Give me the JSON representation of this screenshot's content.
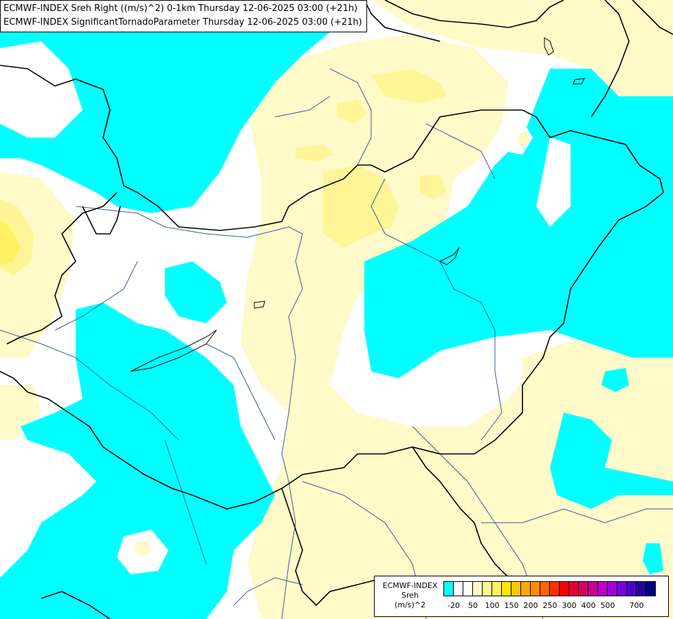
{
  "titles": {
    "line1": "ECMWF-INDEX Sreh Right ((m/s)^2) 0-1km Thursday 12-06-2025 03:00 (+21h)",
    "line2": "ECMWF-INDEX SignificantTornadoParameter Thursday 12-06-2025 03:00 (+21h)"
  },
  "legend": {
    "line1": "ECMWF-INDEX",
    "line2": "Sreh",
    "line3": "(m/s)^2",
    "colors": [
      "#00ffff",
      "#ffffff",
      "#fffff0",
      "#fffac8",
      "#fff596",
      "#fff064",
      "#ffe600",
      "#ffc800",
      "#ffaa00",
      "#ff8c00",
      "#ff6400",
      "#ff3200",
      "#ff0000",
      "#e60032",
      "#d20064",
      "#c80096",
      "#be00c8",
      "#a000dc",
      "#7800dc",
      "#5000c8",
      "#2800a0",
      "#000080"
    ],
    "ticks": [
      "-20",
      "50",
      "100",
      "150",
      "200",
      "250",
      "300",
      "400",
      "500",
      "700"
    ]
  },
  "palette": {
    "cyan": "#00ffff",
    "pale_yellow": "#fffac8",
    "light_yellow": "#fff596",
    "yellow": "#fff064",
    "border": "#000000",
    "river": "#3a5a9a"
  }
}
